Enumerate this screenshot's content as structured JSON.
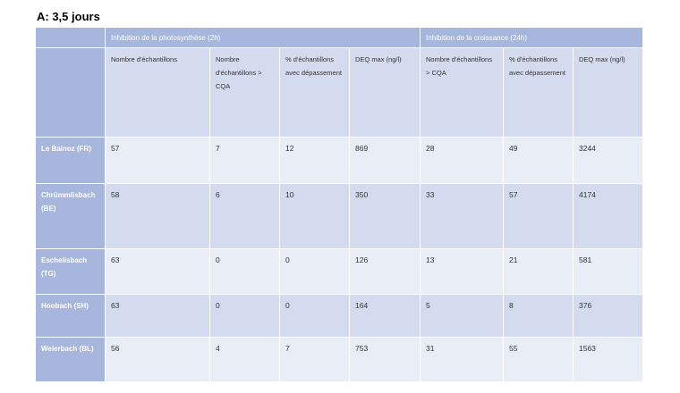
{
  "title": "A:  3,5 jours",
  "groups": {
    "photosynthese": "Inhibition de la photosynthèse (2h)",
    "croissance": "Inhibition de la croissance (24h)"
  },
  "subheaders": [
    "Nombre d'échantillons",
    "Nombre d'échantillons > CQA",
    "% d'échantillons avec dépassement",
    "DEQ max (ng/l)",
    "Nombre d'échantillons > CQA",
    "% d'échantillons avec dépassement",
    "DEQ max (ng/l)"
  ],
  "rows": [
    {
      "site": "Le Bainoz  (FR)",
      "values": [
        "57",
        "7",
        "12",
        "869",
        "28",
        "49",
        "3244"
      ]
    },
    {
      "site": "Chrümmlisbach (BE)",
      "values": [
        "58",
        "6",
        "10",
        "350",
        "33",
        "57",
        "4174"
      ]
    },
    {
      "site": "Eschelisbach (TG)",
      "values": [
        "63",
        "0",
        "0",
        "126",
        "13",
        "21",
        "581"
      ]
    },
    {
      "site": "Hoobach  (SH)",
      "values": [
        "63",
        "0",
        "0",
        "164",
        "5",
        "8",
        "376"
      ]
    },
    {
      "site": "Weierbach (BL)",
      "values": [
        "56",
        "4",
        "7",
        "753",
        "31",
        "55",
        "1563"
      ]
    }
  ]
}
